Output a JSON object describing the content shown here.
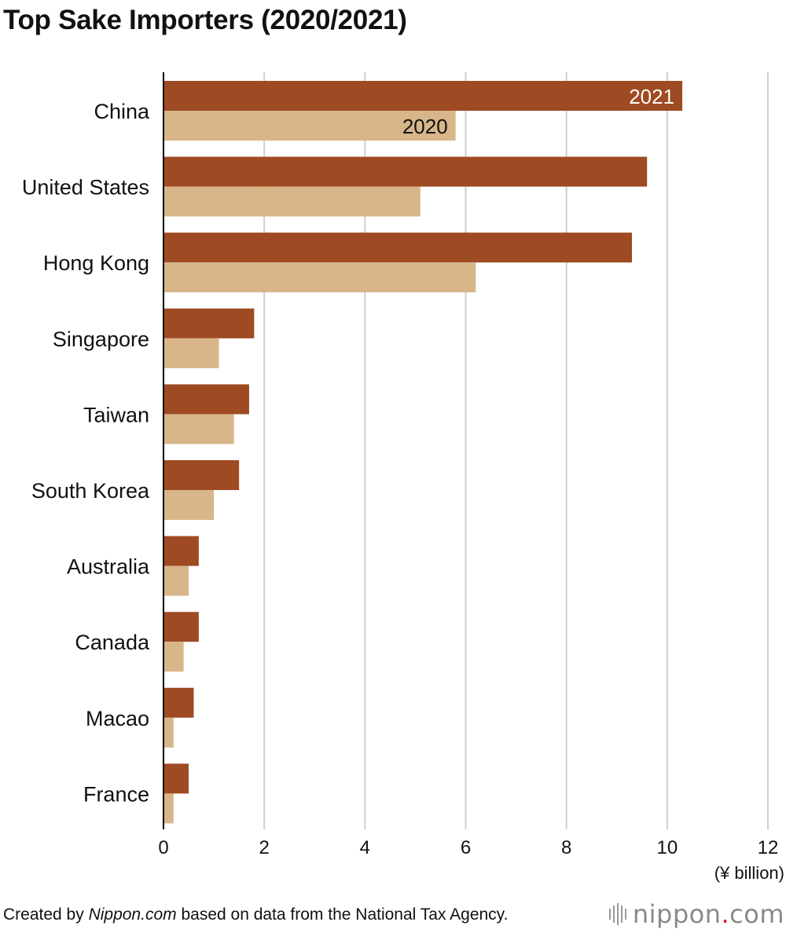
{
  "page": {
    "title": "Top Sake Importers (2020/2021)"
  },
  "chart_data": {
    "type": "bar",
    "orientation": "horizontal",
    "title": "Top Sake Importers (2020/2021)",
    "xlabel": "",
    "ylabel": "",
    "unit_label": "(¥ billion)",
    "xlim": [
      0,
      12
    ],
    "xticks": [
      0,
      2,
      4,
      6,
      8,
      10,
      12
    ],
    "grid": true,
    "categories": [
      "China",
      "United States",
      "Hong Kong",
      "Singapore",
      "Taiwan",
      "South Korea",
      "Australia",
      "Canada",
      "Macao",
      "France"
    ],
    "series": [
      {
        "name": "2021",
        "color": "#9e4a22",
        "values": [
          10.3,
          9.6,
          9.3,
          1.8,
          1.7,
          1.5,
          0.7,
          0.7,
          0.6,
          0.5
        ]
      },
      {
        "name": "2020",
        "color": "#d8b68a",
        "values": [
          5.8,
          5.1,
          6.2,
          1.1,
          1.4,
          1.0,
          0.5,
          0.4,
          0.2,
          0.2
        ]
      }
    ],
    "colors": {
      "grid": "#cfcfcf",
      "axis": "#000000"
    }
  },
  "footer": {
    "prefix": "Created by ",
    "source_name": "Nippon.com",
    "suffix": " based on data from the National Tax Agency."
  },
  "brand": {
    "name_main": "nippon",
    "dot": ".",
    "name_end": "com",
    "accent_color": "#e0202a"
  }
}
